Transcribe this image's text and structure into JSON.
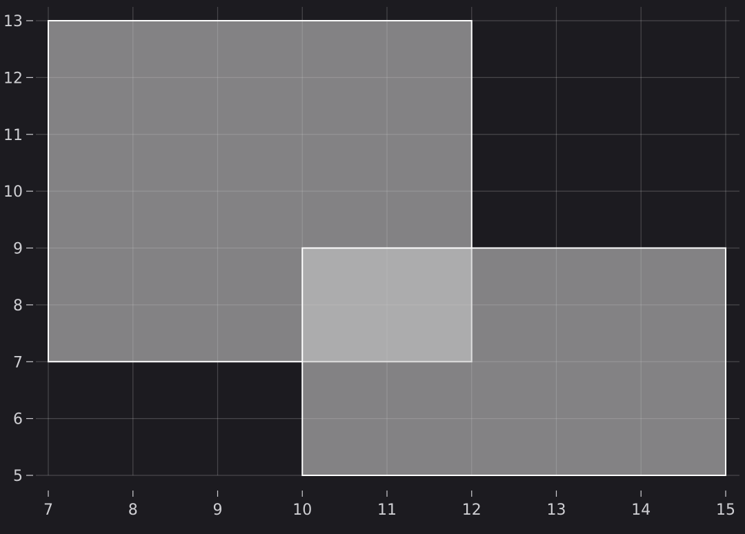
{
  "chart_data": {
    "type": "rect",
    "title": "",
    "xlabel": "",
    "ylabel": "",
    "xlim": [
      7,
      15
    ],
    "ylim": [
      5,
      13
    ],
    "x_ticks": [
      7,
      8,
      9,
      10,
      11,
      12,
      13,
      14,
      15
    ],
    "y_ticks": [
      5,
      6,
      7,
      8,
      9,
      10,
      11,
      12,
      13
    ],
    "grid": true,
    "rectangles": [
      {
        "x0": 7,
        "x1": 12,
        "y0": 7,
        "y1": 13
      },
      {
        "x0": 10,
        "x1": 15,
        "y0": 5,
        "y1": 9
      }
    ],
    "colors": {
      "background": "#1c1b20",
      "rect_fill": "#c8c8c8",
      "rect_stroke": "#ffffff",
      "tick_text": "#cfcfd3"
    }
  }
}
